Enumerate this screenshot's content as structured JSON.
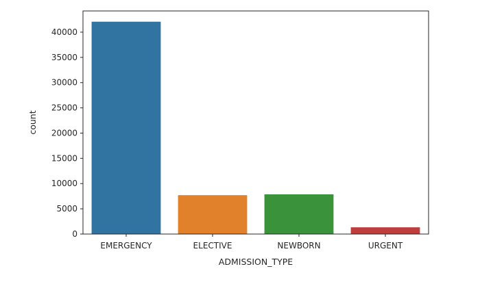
{
  "chart_data": {
    "type": "bar",
    "categories": [
      "EMERGENCY",
      "ELECTIVE",
      "NEWBORN",
      "URGENT"
    ],
    "values": [
      42071,
      7706,
      7863,
      1336
    ],
    "colors": [
      "#3274a1",
      "#e1812c",
      "#3a923a",
      "#c03d3e"
    ],
    "xlabel": "ADMISSION_TYPE",
    "ylabel": "count",
    "ylim": [
      0,
      44200
    ],
    "yticks": [
      0,
      5000,
      10000,
      15000,
      20000,
      25000,
      30000,
      35000,
      40000
    ],
    "grid": false,
    "legend": "none"
  }
}
